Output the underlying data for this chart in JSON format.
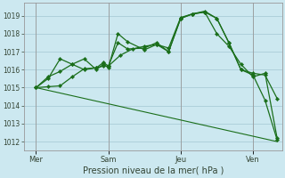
{
  "title": "Pression niveau de la mer( hPa )",
  "bg_color": "#cce8f0",
  "grid_color": "#aaccd8",
  "line_color": "#1a6e1a",
  "ylim": [
    1011.5,
    1019.7
  ],
  "yticks": [
    1012,
    1013,
    1014,
    1015,
    1016,
    1017,
    1018,
    1019
  ],
  "xtick_labels": [
    "Mer",
    "Sam",
    "Jeu",
    "Ven"
  ],
  "xtick_positions": [
    0.0,
    3.0,
    6.0,
    9.0
  ],
  "vline_x": [
    0.0,
    3.0,
    6.0,
    9.0
  ],
  "xlim": [
    -0.5,
    10.2
  ],
  "series": [
    {
      "x": [
        0.0,
        10.0
      ],
      "y": [
        1015.0,
        1012.0
      ],
      "markers": false,
      "lw": 0.8
    },
    {
      "x": [
        0.0,
        0.5,
        1.0,
        1.5,
        2.0,
        2.5,
        2.8,
        3.0,
        3.5,
        4.0,
        4.5,
        5.0,
        5.5,
        6.0,
        6.5,
        7.0,
        7.5,
        8.0,
        8.5,
        9.0,
        9.5,
        10.0
      ],
      "y": [
        1015.0,
        1015.05,
        1015.1,
        1015.6,
        1016.05,
        1016.1,
        1016.2,
        1016.2,
        1016.8,
        1017.15,
        1017.3,
        1017.4,
        1017.2,
        1018.9,
        1019.1,
        1019.25,
        1018.85,
        1017.5,
        1016.0,
        1015.8,
        1015.7,
        1014.4
      ],
      "markers": true,
      "lw": 0.9
    },
    {
      "x": [
        0.0,
        0.5,
        1.0,
        1.5,
        2.0,
        2.5,
        2.8,
        3.0,
        3.4,
        3.8,
        4.5,
        5.0,
        5.5,
        6.0,
        6.5,
        7.0,
        7.5,
        8.0,
        8.5,
        9.0,
        9.5,
        10.0
      ],
      "y": [
        1015.0,
        1015.5,
        1016.6,
        1016.3,
        1016.0,
        1016.1,
        1016.4,
        1016.2,
        1017.5,
        1017.15,
        1017.2,
        1017.5,
        1017.0,
        1018.85,
        1019.1,
        1019.2,
        1018.0,
        1017.3,
        1016.3,
        1015.6,
        1015.8,
        1012.2
      ],
      "markers": true,
      "lw": 0.9
    },
    {
      "x": [
        0.0,
        0.5,
        1.0,
        1.5,
        2.0,
        2.5,
        2.8,
        3.0,
        3.4,
        3.8,
        4.5,
        5.0,
        5.5,
        6.0,
        6.5,
        7.0,
        7.5,
        8.0,
        8.5,
        9.0,
        9.5,
        10.0
      ],
      "y": [
        1015.0,
        1015.6,
        1015.9,
        1016.3,
        1016.6,
        1016.0,
        1016.3,
        1016.1,
        1018.0,
        1017.55,
        1017.1,
        1017.4,
        1017.0,
        1018.85,
        1019.1,
        1019.2,
        1018.85,
        1017.5,
        1016.0,
        1015.7,
        1014.3,
        1012.1
      ],
      "markers": true,
      "lw": 0.9
    }
  ]
}
